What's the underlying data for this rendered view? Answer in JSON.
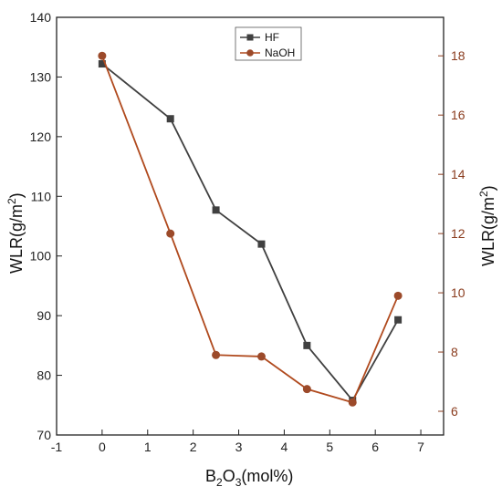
{
  "chart_data": {
    "type": "line",
    "x": [
      0,
      1.5,
      2.5,
      3.5,
      4.5,
      5.5,
      6.5
    ],
    "xlim": [
      -1,
      7.5
    ],
    "x_ticks": [
      -1,
      0,
      1,
      2,
      3,
      4,
      5,
      6,
      7
    ],
    "xlabel_main": "B",
    "xlabel_sub": "2",
    "xlabel_rest": "O",
    "xlabel_sub2": "3",
    "xlabel_tail": "(mol%)",
    "ylabel_left_main": "WLR(g/m",
    "ylabel_left_sup": "2",
    "ylabel_left_tail": ")",
    "ylabel_right_main": "WLR(g/m",
    "ylabel_right_sup": "2",
    "ylabel_right_tail": ")",
    "ylim_left": [
      70,
      140
    ],
    "yticks_left": [
      70,
      80,
      90,
      100,
      110,
      120,
      130,
      140
    ],
    "ylim_right": [
      5.2,
      19.3
    ],
    "yticks_right": [
      6,
      8,
      10,
      12,
      14,
      16,
      18
    ],
    "legend_position": "top-center",
    "series": [
      {
        "name": "HF",
        "axis": "left",
        "color": "#404040",
        "marker": "square",
        "values": [
          132.2,
          123,
          107.7,
          102,
          85,
          75.8,
          89.3
        ]
      },
      {
        "name": "NaOH",
        "axis": "right",
        "color": "#b04a1e",
        "marker_color": "#9c4a2a",
        "marker": "circle",
        "values": [
          18,
          12,
          7.9,
          7.85,
          6.75,
          6.3,
          9.9
        ]
      }
    ]
  }
}
